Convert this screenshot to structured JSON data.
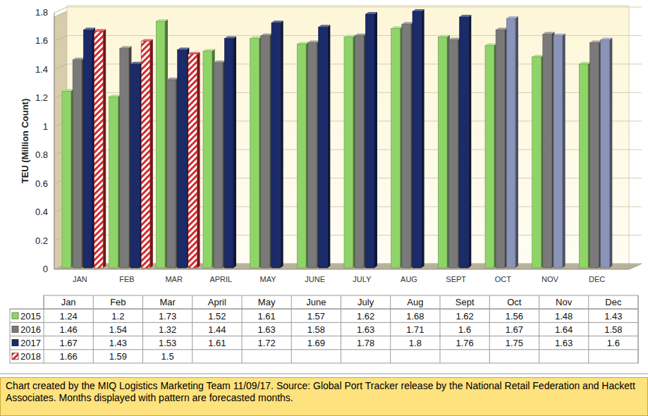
{
  "chart_data": {
    "type": "bar",
    "y_label": "TEU (Million Count)",
    "categories": [
      "JAN",
      "FEB",
      "MAR",
      "APRIL",
      "MAY",
      "JUNE",
      "JULY",
      "AUG",
      "SEPT",
      "OCT",
      "NOV",
      "DEC"
    ],
    "series": [
      {
        "name": "2015",
        "color": "#8fd468",
        "values": [
          1.24,
          1.2,
          1.73,
          1.52,
          1.61,
          1.57,
          1.62,
          1.68,
          1.62,
          1.56,
          1.48,
          1.43
        ]
      },
      {
        "name": "2016",
        "color": "#7a7a7a",
        "values": [
          1.46,
          1.54,
          1.32,
          1.44,
          1.63,
          1.58,
          1.63,
          1.71,
          1.6,
          1.67,
          1.64,
          1.58
        ]
      },
      {
        "name": "2017",
        "color": "#1b2a68",
        "colors": [
          "#1b2a68",
          "#1b2a68",
          "#1b2a68",
          "#1b2a68",
          "#1b2a68",
          "#1b2a68",
          "#1b2a68",
          "#1b2a68",
          "#1b2a68",
          "#8a93b8",
          "#8a93b8",
          "#8a93b8"
        ],
        "values": [
          1.67,
          1.43,
          1.53,
          1.61,
          1.72,
          1.69,
          1.78,
          1.8,
          1.76,
          1.75,
          1.63,
          1.6
        ]
      },
      {
        "name": "2018",
        "color": "#d42a2e",
        "line_style": "hatched",
        "values": [
          1.66,
          1.59,
          1.5,
          null,
          null,
          null,
          null,
          null,
          null,
          null,
          null,
          null
        ]
      }
    ],
    "ylim": [
      0,
      1.8
    ],
    "yticks": [
      0,
      0.2,
      0.4,
      0.6,
      0.8,
      1,
      1.2,
      1.4,
      1.6,
      1.8
    ],
    "grid": true
  },
  "data_table": {
    "columns": [
      "Jan",
      "Feb",
      "Mar",
      "April",
      "May",
      "June",
      "July",
      "Aug",
      "Sept",
      "Oct",
      "Nov",
      "Dec"
    ]
  },
  "footer": {
    "text": "Chart created by the MIQ Logistics Marketing Team 11/09/17. Source: Global Port Tracker release by the National Retail Federation and Hackett Associates. Months displayed with pattern are forecasted months."
  }
}
